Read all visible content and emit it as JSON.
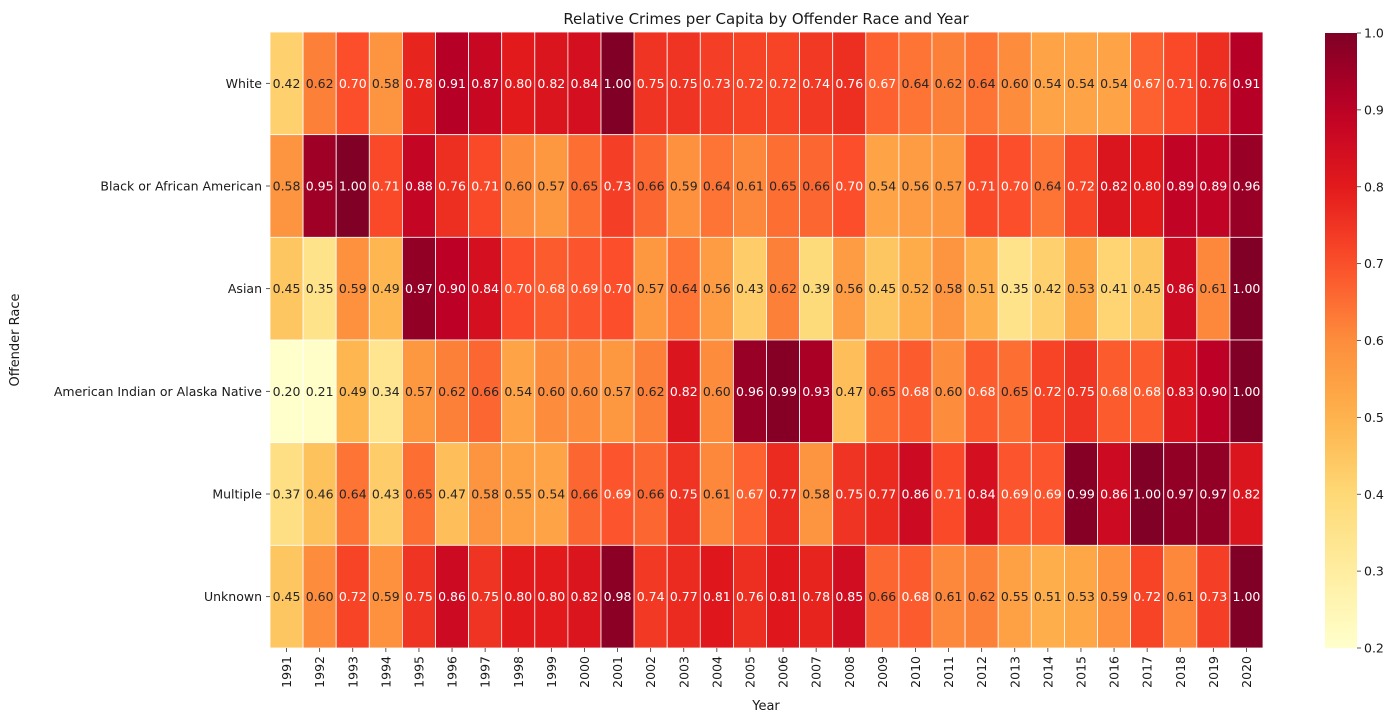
{
  "chart_data": {
    "type": "heatmap",
    "title": "Relative Crimes per Capita by Offender Race and Year",
    "xlabel": "Year",
    "ylabel": "Offender Race",
    "colormap": "YlOrRd",
    "vmin": 0.2,
    "vmax": 1.0,
    "colorbar_ticks": [
      "0.2",
      "0.3",
      "0.4",
      "0.5",
      "0.6",
      "0.7",
      "0.8",
      "0.9",
      "1.0"
    ],
    "colorbar_tick_values": [
      0.2,
      0.3,
      0.4,
      0.5,
      0.6,
      0.7,
      0.8,
      0.9,
      1.0
    ],
    "x": [
      "1991",
      "1992",
      "1993",
      "1994",
      "1995",
      "1996",
      "1997",
      "1998",
      "1999",
      "2000",
      "2001",
      "2002",
      "2003",
      "2004",
      "2005",
      "2006",
      "2007",
      "2008",
      "2009",
      "2010",
      "2011",
      "2012",
      "2013",
      "2014",
      "2015",
      "2016",
      "2017",
      "2018",
      "2019",
      "2020"
    ],
    "y": [
      "White",
      "Black or African American",
      "Asian",
      "American Indian or Alaska Native",
      "Multiple",
      "Unknown"
    ],
    "values": [
      [
        0.42,
        0.62,
        0.7,
        0.58,
        0.78,
        0.91,
        0.87,
        0.8,
        0.82,
        0.84,
        1.0,
        0.75,
        0.75,
        0.73,
        0.72,
        0.72,
        0.74,
        0.76,
        0.67,
        0.64,
        0.62,
        0.64,
        0.6,
        0.54,
        0.54,
        0.54,
        0.67,
        0.71,
        0.76,
        0.91
      ],
      [
        0.58,
        0.95,
        1.0,
        0.71,
        0.88,
        0.76,
        0.71,
        0.6,
        0.57,
        0.65,
        0.73,
        0.66,
        0.59,
        0.64,
        0.61,
        0.65,
        0.66,
        0.7,
        0.54,
        0.56,
        0.57,
        0.71,
        0.7,
        0.64,
        0.72,
        0.82,
        0.8,
        0.89,
        0.89,
        0.96
      ],
      [
        0.45,
        0.35,
        0.59,
        0.49,
        0.97,
        0.9,
        0.84,
        0.7,
        0.68,
        0.69,
        0.7,
        0.57,
        0.64,
        0.56,
        0.43,
        0.62,
        0.39,
        0.56,
        0.45,
        0.52,
        0.58,
        0.51,
        0.35,
        0.42,
        0.53,
        0.41,
        0.45,
        0.86,
        0.61,
        1.0
      ],
      [
        0.2,
        0.21,
        0.49,
        0.34,
        0.57,
        0.62,
        0.66,
        0.54,
        0.6,
        0.6,
        0.57,
        0.62,
        0.82,
        0.6,
        0.96,
        0.99,
        0.93,
        0.47,
        0.65,
        0.68,
        0.6,
        0.68,
        0.65,
        0.72,
        0.75,
        0.68,
        0.68,
        0.83,
        0.9,
        1.0
      ],
      [
        0.37,
        0.46,
        0.64,
        0.43,
        0.65,
        0.47,
        0.58,
        0.55,
        0.54,
        0.66,
        0.69,
        0.66,
        0.75,
        0.61,
        0.67,
        0.77,
        0.58,
        0.75,
        0.77,
        0.86,
        0.71,
        0.84,
        0.69,
        0.69,
        0.99,
        0.86,
        1.0,
        0.97,
        0.97,
        0.82
      ],
      [
        0.45,
        0.6,
        0.72,
        0.59,
        0.75,
        0.86,
        0.75,
        0.8,
        0.8,
        0.82,
        0.98,
        0.74,
        0.77,
        0.81,
        0.76,
        0.81,
        0.78,
        0.85,
        0.66,
        0.68,
        0.61,
        0.62,
        0.55,
        0.51,
        0.53,
        0.59,
        0.72,
        0.61,
        0.73,
        1.0
      ]
    ],
    "grid": false,
    "legend": "colorbar-right"
  }
}
